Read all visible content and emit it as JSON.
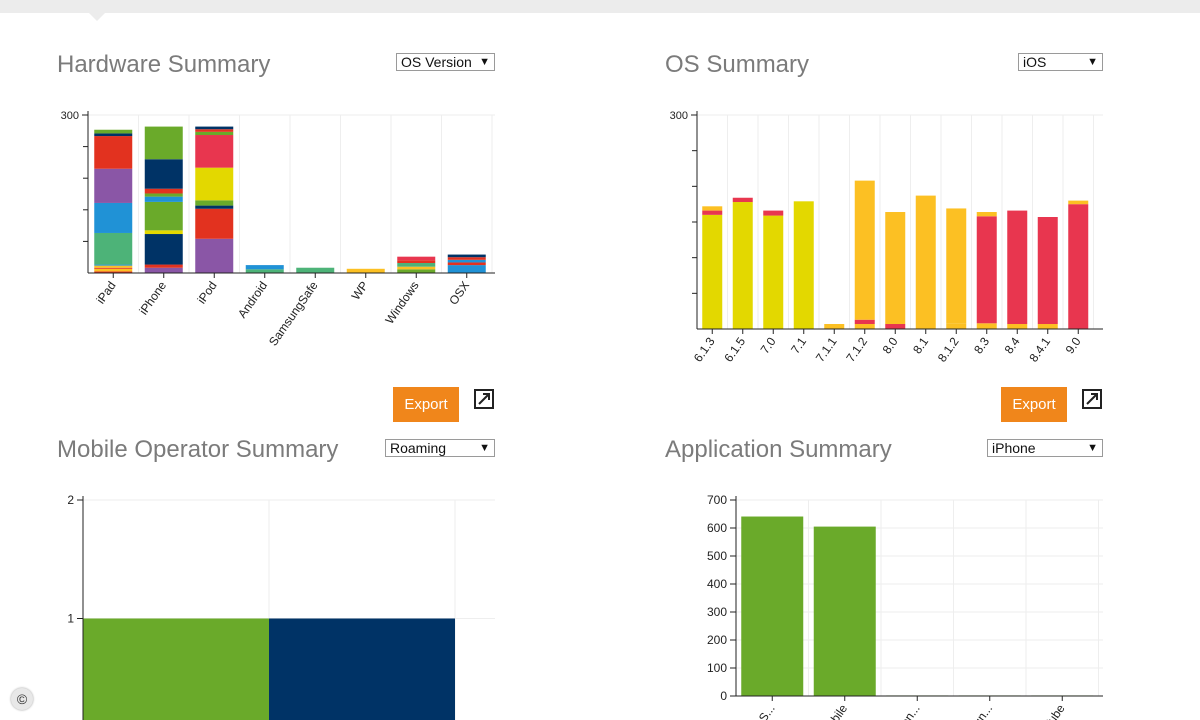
{
  "hardware": {
    "title": "Hardware Summary",
    "select_value": "OS Version",
    "export_label": "Export"
  },
  "os": {
    "title": "OS Summary",
    "select_value": "iOS",
    "export_label": "Export"
  },
  "mobile": {
    "title": "Mobile Operator Summary",
    "select_value": "Roaming"
  },
  "application": {
    "title": "Application Summary",
    "select_value": "iPhone"
  },
  "copyright_symbol": "©",
  "colors": {
    "green": "#6aaa2a",
    "navy": "#003366",
    "yellow": "#e3d800",
    "amber": "#fcc023",
    "red": "#e8364f",
    "crimson": "#e2321f",
    "purple": "#8a56a6",
    "blue": "#2092d6",
    "teal": "#4db378",
    "orange": "#f08b1a",
    "export": "#f0861b"
  },
  "chart_data": [
    {
      "id": "hardware",
      "type": "bar",
      "stacked": true,
      "categories": [
        "iPad",
        "iPhone",
        "iPod",
        "Android",
        "SamsungSafe",
        "WP",
        "Windows",
        "OSX"
      ],
      "ylim": [
        0,
        300
      ],
      "yticks": [
        300
      ],
      "stacks": [
        [
          [
            3,
            "#e2321f"
          ],
          [
            5,
            "#fcc023"
          ],
          [
            2,
            "#e2321f"
          ],
          [
            4,
            "#fcc023"
          ],
          [
            2,
            "#2092d6"
          ],
          [
            60,
            "#4db378"
          ],
          [
            57,
            "#2092d6"
          ],
          [
            65,
            "#8a56a6"
          ],
          [
            62,
            "#e2321f"
          ],
          [
            5,
            "#003366"
          ],
          [
            7,
            "#6aaa2a"
          ]
        ],
        [
          [
            10,
            "#8a56a6"
          ],
          [
            6,
            "#e2321f"
          ],
          [
            58,
            "#003366"
          ],
          [
            7,
            "#e3d800"
          ],
          [
            54,
            "#6aaa2a"
          ],
          [
            10,
            "#2092d6"
          ],
          [
            6,
            "#6aaa2a"
          ],
          [
            9,
            "#e2321f"
          ],
          [
            56,
            "#003366"
          ],
          [
            62,
            "#6aaa2a"
          ]
        ],
        [
          [
            65,
            "#8a56a6"
          ],
          [
            57,
            "#e2321f"
          ],
          [
            6,
            "#003366"
          ],
          [
            10,
            "#6aaa2a"
          ],
          [
            62,
            "#e3d800"
          ],
          [
            62,
            "#e8364f"
          ],
          [
            6,
            "#6aaa2a"
          ],
          [
            5,
            "#e2321f"
          ],
          [
            5,
            "#003366"
          ]
        ],
        [
          [
            7,
            "#4db378"
          ],
          [
            8,
            "#2092d6"
          ]
        ],
        [
          [
            10,
            "#4db378"
          ]
        ],
        [
          [
            8,
            "#fcc023"
          ]
        ],
        [
          [
            7,
            "#6aaa2a"
          ],
          [
            5,
            "#fcc023"
          ],
          [
            7,
            "#4db378"
          ],
          [
            5,
            "#e2321f"
          ],
          [
            7,
            "#e8364f"
          ]
        ],
        [
          [
            15,
            "#2092d6"
          ],
          [
            5,
            "#e2321f"
          ],
          [
            5,
            "#2092d6"
          ],
          [
            5,
            "#e2321f"
          ],
          [
            5,
            "#003366"
          ]
        ]
      ]
    },
    {
      "id": "os",
      "type": "bar",
      "stacked": true,
      "categories": [
        "6.1.3",
        "6.1.5",
        "7.0",
        "7.1",
        "7.1.1",
        "7.1.2",
        "8.0",
        "8.1",
        "8.1.2",
        "8.3",
        "8.4",
        "8.4.1",
        "9.0"
      ],
      "ylim": [
        0,
        300
      ],
      "yticks": [
        300
      ],
      "stacks": [
        [
          [
            160,
            "#e3d800"
          ],
          [
            6,
            "#e8364f"
          ],
          [
            6,
            "#fcc023"
          ]
        ],
        [
          [
            178,
            "#e3d800"
          ],
          [
            6,
            "#e8364f"
          ]
        ],
        [
          [
            159,
            "#e3d800"
          ],
          [
            7,
            "#e8364f"
          ]
        ],
        [
          [
            179,
            "#e3d800"
          ]
        ],
        [
          [
            7,
            "#fcc023"
          ]
        ],
        [
          [
            7,
            "#fcc023"
          ],
          [
            6,
            "#e8364f"
          ],
          [
            195,
            "#fcc023"
          ]
        ],
        [
          [
            7,
            "#e8364f"
          ],
          [
            157,
            "#fcc023"
          ]
        ],
        [
          [
            187,
            "#fcc023"
          ]
        ],
        [
          [
            8,
            "#fcc023"
          ],
          [
            161,
            "#fcc023"
          ]
        ],
        [
          [
            8,
            "#fcc023"
          ],
          [
            150,
            "#e8364f"
          ],
          [
            6,
            "#fcc023"
          ]
        ],
        [
          [
            7,
            "#fcc023"
          ],
          [
            159,
            "#e8364f"
          ]
        ],
        [
          [
            7,
            "#fcc023"
          ],
          [
            150,
            "#e8364f"
          ]
        ],
        [
          [
            175,
            "#e8364f"
          ],
          [
            5,
            "#fcc023"
          ]
        ]
      ]
    },
    {
      "id": "mobile",
      "type": "bar",
      "stacked": false,
      "categories": [
        "",
        ""
      ],
      "values": [
        1,
        1
      ],
      "bar_colors": [
        "#6aaa2a",
        "#003366"
      ],
      "ylim": [
        0,
        2
      ],
      "yticks": [
        1,
        2
      ]
    },
    {
      "id": "application",
      "type": "bar",
      "stacked": false,
      "categories": [
        "...n S...",
        "...obile",
        "...ion...",
        "...un...",
        "...Tube"
      ],
      "values": [
        641,
        605,
        2,
        2,
        2
      ],
      "bar_colors": [
        "#6aaa2a",
        "#6aaa2a",
        "#6aaa2a",
        "#6aaa2a",
        "#6aaa2a"
      ],
      "ylim": [
        0,
        700
      ],
      "yticks": [
        0,
        100,
        200,
        300,
        400,
        500,
        600,
        700
      ]
    }
  ]
}
